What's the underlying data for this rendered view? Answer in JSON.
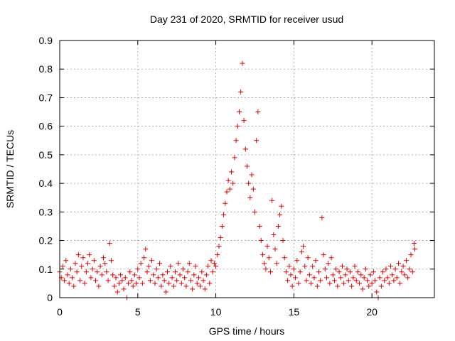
{
  "chart_data": {
    "type": "scatter",
    "title": "Day 231 of 2020, SRMTID for receiver usud",
    "xlabel": "GPS time / hours",
    "ylabel": "SRMTID / TECUs",
    "xlim": [
      0,
      24
    ],
    "ylim": [
      0,
      0.9
    ],
    "xticks": [
      0,
      5,
      10,
      15,
      20
    ],
    "yticks": [
      0,
      0.1,
      0.2,
      0.3,
      0.4,
      0.5,
      0.6,
      0.7,
      0.8,
      0.9
    ],
    "xtick_labels": [
      "0",
      "5",
      "10",
      "15",
      "20"
    ],
    "ytick_labels": [
      "0",
      "0.1",
      "0.2",
      "0.3",
      "0.4",
      "0.5",
      "0.6",
      "0.7",
      "0.8",
      "0.9"
    ],
    "grid": true,
    "marker": "+",
    "color": "#e00000",
    "series": [
      {
        "name": "SRMTID",
        "points": [
          [
            0.0,
            0.09
          ],
          [
            0.1,
            0.07
          ],
          [
            0.2,
            0.11
          ],
          [
            0.3,
            0.06
          ],
          [
            0.4,
            0.13
          ],
          [
            0.5,
            0.08
          ],
          [
            0.6,
            0.05
          ],
          [
            0.7,
            0.1
          ],
          [
            0.8,
            0.07
          ],
          [
            0.9,
            0.04
          ],
          [
            1.0,
            0.12
          ],
          [
            1.1,
            0.09
          ],
          [
            1.2,
            0.15
          ],
          [
            1.3,
            0.06
          ],
          [
            1.4,
            0.11
          ],
          [
            1.5,
            0.14
          ],
          [
            1.6,
            0.05
          ],
          [
            1.7,
            0.09
          ],
          [
            1.8,
            0.12
          ],
          [
            1.9,
            0.15
          ],
          [
            2.0,
            0.07
          ],
          [
            2.1,
            0.1
          ],
          [
            2.2,
            0.13
          ],
          [
            2.3,
            0.06
          ],
          [
            2.4,
            0.09
          ],
          [
            2.5,
            0.04
          ],
          [
            2.6,
            0.11
          ],
          [
            2.7,
            0.08
          ],
          [
            2.8,
            0.14
          ],
          [
            2.9,
            0.12
          ],
          [
            3.0,
            0.09
          ],
          [
            3.1,
            0.06
          ],
          [
            3.2,
            0.19
          ],
          [
            3.3,
            0.13
          ],
          [
            3.4,
            0.08
          ],
          [
            3.5,
            0.04
          ],
          [
            3.6,
            0.07
          ],
          [
            3.7,
            0.02
          ],
          [
            3.8,
            0.05
          ],
          [
            3.9,
            0.08
          ],
          [
            4.0,
            0.06
          ],
          [
            4.1,
            0.03
          ],
          [
            4.2,
            0.07
          ],
          [
            4.3,
            0.0
          ],
          [
            4.4,
            0.05
          ],
          [
            4.5,
            0.09
          ],
          [
            4.6,
            0.06
          ],
          [
            4.7,
            0.04
          ],
          [
            4.8,
            0.08
          ],
          [
            4.9,
            0.05
          ],
          [
            5.0,
            0.1
          ],
          [
            5.1,
            0.07
          ],
          [
            5.2,
            0.12
          ],
          [
            5.3,
            0.05
          ],
          [
            5.4,
            0.14
          ],
          [
            5.5,
            0.17
          ],
          [
            5.6,
            0.09
          ],
          [
            5.7,
            0.11
          ],
          [
            5.8,
            0.06
          ],
          [
            5.9,
            0.13
          ],
          [
            6.0,
            0.08
          ],
          [
            6.1,
            0.05
          ],
          [
            6.2,
            0.1
          ],
          [
            6.3,
            0.07
          ],
          [
            6.4,
            0.12
          ],
          [
            6.5,
            0.04
          ],
          [
            6.6,
            0.08
          ],
          [
            6.7,
            0.06
          ],
          [
            6.8,
            0.02
          ],
          [
            6.9,
            0.09
          ],
          [
            7.0,
            0.05
          ],
          [
            7.1,
            0.11
          ],
          [
            7.2,
            0.07
          ],
          [
            7.3,
            0.04
          ],
          [
            7.4,
            0.09
          ],
          [
            7.5,
            0.06
          ],
          [
            7.6,
            0.12
          ],
          [
            7.7,
            0.08
          ],
          [
            7.8,
            0.05
          ],
          [
            7.9,
            0.1
          ],
          [
            8.0,
            0.07
          ],
          [
            8.1,
            0.04
          ],
          [
            8.2,
            0.09
          ],
          [
            8.3,
            0.12
          ],
          [
            8.4,
            0.06
          ],
          [
            8.5,
            0.03
          ],
          [
            8.6,
            0.08
          ],
          [
            8.7,
            0.11
          ],
          [
            8.8,
            0.05
          ],
          [
            8.9,
            0.07
          ],
          [
            9.0,
            0.04
          ],
          [
            9.1,
            0.09
          ],
          [
            9.2,
            0.06
          ],
          [
            9.3,
            0.03
          ],
          [
            9.4,
            0.08
          ],
          [
            9.5,
            0.11
          ],
          [
            9.6,
            0.05
          ],
          [
            9.7,
            0.13
          ],
          [
            9.8,
            0.09
          ],
          [
            9.9,
            0.12
          ],
          [
            10.0,
            0.11
          ],
          [
            10.1,
            0.15
          ],
          [
            10.2,
            0.18
          ],
          [
            10.3,
            0.21
          ],
          [
            10.4,
            0.25
          ],
          [
            10.5,
            0.29
          ],
          [
            10.6,
            0.33
          ],
          [
            10.7,
            0.37
          ],
          [
            10.8,
            0.41
          ],
          [
            10.9,
            0.38
          ],
          [
            11.0,
            0.44
          ],
          [
            11.1,
            0.4
          ],
          [
            11.2,
            0.49
          ],
          [
            11.3,
            0.55
          ],
          [
            11.4,
            0.6
          ],
          [
            11.5,
            0.65
          ],
          [
            11.6,
            0.72
          ],
          [
            11.7,
            0.82
          ],
          [
            11.8,
            0.62
          ],
          [
            11.9,
            0.52
          ],
          [
            12.0,
            0.46
          ],
          [
            12.1,
            0.4
          ],
          [
            12.2,
            0.35
          ],
          [
            12.3,
            0.43
          ],
          [
            12.4,
            0.38
          ],
          [
            12.5,
            0.3
          ],
          [
            12.6,
            0.55
          ],
          [
            12.7,
            0.65
          ],
          [
            12.8,
            0.25
          ],
          [
            12.9,
            0.2
          ],
          [
            13.0,
            0.15
          ],
          [
            13.1,
            0.12
          ],
          [
            13.2,
            0.1
          ],
          [
            13.3,
            0.18
          ],
          [
            13.4,
            0.14
          ],
          [
            13.5,
            0.09
          ],
          [
            13.6,
            0.34
          ],
          [
            13.7,
            0.22
          ],
          [
            13.8,
            0.17
          ],
          [
            13.9,
            0.12
          ],
          [
            14.0,
            0.25
          ],
          [
            14.1,
            0.29
          ],
          [
            14.2,
            0.32
          ],
          [
            14.3,
            0.2
          ],
          [
            14.4,
            0.14
          ],
          [
            14.5,
            0.09
          ],
          [
            14.6,
            0.06
          ],
          [
            14.7,
            0.11
          ],
          [
            14.8,
            0.08
          ],
          [
            14.9,
            0.04
          ],
          [
            15.0,
            0.1
          ],
          [
            15.1,
            0.07
          ],
          [
            15.2,
            0.13
          ],
          [
            15.3,
            0.05
          ],
          [
            15.4,
            0.09
          ],
          [
            15.5,
            0.16
          ],
          [
            15.6,
            0.18
          ],
          [
            15.7,
            0.11
          ],
          [
            15.8,
            0.06
          ],
          [
            15.9,
            0.14
          ],
          [
            16.0,
            0.08
          ],
          [
            16.1,
            0.05
          ],
          [
            16.2,
            0.11
          ],
          [
            16.3,
            0.07
          ],
          [
            16.4,
            0.13
          ],
          [
            16.5,
            0.04
          ],
          [
            16.6,
            0.09
          ],
          [
            16.7,
            0.06
          ],
          [
            16.8,
            0.28
          ],
          [
            16.9,
            0.15
          ],
          [
            17.0,
            0.1
          ],
          [
            17.1,
            0.07
          ],
          [
            17.2,
            0.12
          ],
          [
            17.3,
            0.05
          ],
          [
            17.4,
            0.14
          ],
          [
            17.5,
            0.08
          ],
          [
            17.6,
            0.06
          ],
          [
            17.7,
            0.1
          ],
          [
            17.8,
            0.04
          ],
          [
            17.9,
            0.09
          ],
          [
            18.0,
            0.07
          ],
          [
            18.1,
            0.11
          ],
          [
            18.2,
            0.05
          ],
          [
            18.3,
            0.08
          ],
          [
            18.4,
            0.1
          ],
          [
            18.5,
            0.06
          ],
          [
            18.6,
            0.09
          ],
          [
            18.7,
            0.04
          ],
          [
            18.8,
            0.07
          ],
          [
            18.9,
            0.11
          ],
          [
            19.0,
            0.06
          ],
          [
            19.1,
            0.09
          ],
          [
            19.2,
            0.05
          ],
          [
            19.3,
            0.08
          ],
          [
            19.4,
            0.03
          ],
          [
            19.5,
            0.07
          ],
          [
            19.6,
            0.1
          ],
          [
            19.7,
            0.06
          ],
          [
            19.8,
            0.04
          ],
          [
            19.9,
            0.08
          ],
          [
            20.0,
            0.05
          ],
          [
            20.1,
            0.09
          ],
          [
            20.2,
            0.06
          ],
          [
            20.3,
            0.02
          ],
          [
            20.4,
            0.0
          ],
          [
            20.5,
            0.07
          ],
          [
            20.6,
            0.04
          ],
          [
            20.7,
            0.09
          ],
          [
            20.8,
            0.06
          ],
          [
            20.9,
            0.1
          ],
          [
            21.0,
            0.07
          ],
          [
            21.1,
            0.05
          ],
          [
            21.2,
            0.11
          ],
          [
            21.3,
            0.08
          ],
          [
            21.4,
            0.06
          ],
          [
            21.5,
            0.1
          ],
          [
            21.6,
            0.07
          ],
          [
            21.7,
            0.12
          ],
          [
            21.8,
            0.05
          ],
          [
            21.9,
            0.09
          ],
          [
            22.0,
            0.11
          ],
          [
            22.1,
            0.08
          ],
          [
            22.2,
            0.13
          ],
          [
            22.3,
            0.07
          ],
          [
            22.4,
            0.1
          ],
          [
            22.5,
            0.15
          ],
          [
            22.6,
            0.09
          ],
          [
            22.7,
            0.19
          ],
          [
            22.75,
            0.17
          ]
        ]
      }
    ]
  }
}
